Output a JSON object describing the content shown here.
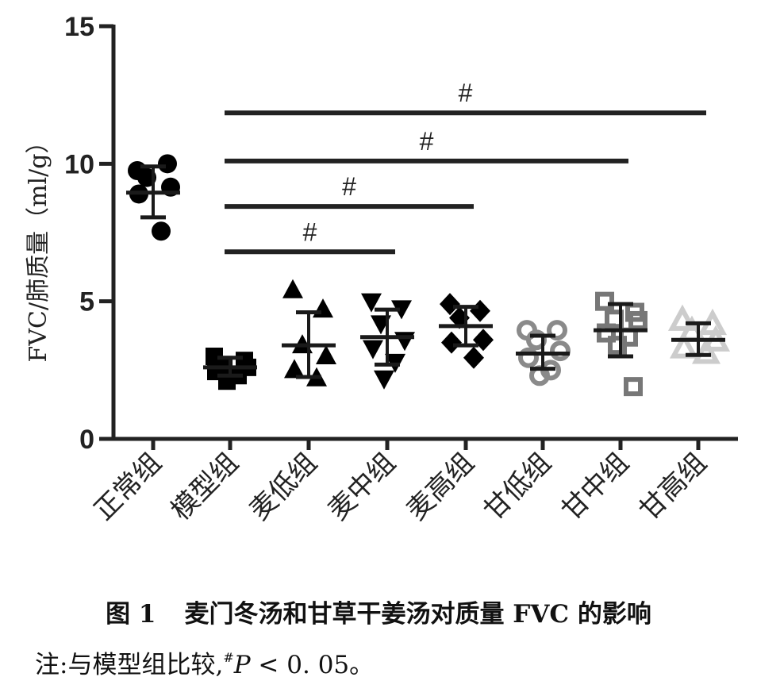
{
  "chart_data": {
    "type": "scatter",
    "ylabel": "FVC/肺质量（ml/g）",
    "ylim": [
      0,
      15
    ],
    "yticks": [
      0,
      5,
      10,
      15
    ],
    "categories": [
      "正常组",
      "模型组",
      "麦低组",
      "麦中组",
      "麦高组",
      "甘低组",
      "甘中组",
      "甘高组"
    ],
    "groups": [
      {
        "name": "正常组",
        "marker": "circle",
        "color": "#000000",
        "filled": true,
        "points": [
          9.75,
          10.0,
          9.5,
          9.15,
          8.9,
          7.55
        ],
        "mean": 8.95,
        "err_low": 8.05,
        "err_high": 9.9
      },
      {
        "name": "模型组",
        "marker": "square",
        "color": "#000000",
        "filled": true,
        "points": [
          3.0,
          2.85,
          2.7,
          2.6,
          2.45,
          2.3,
          2.1
        ],
        "mean": 2.6,
        "err_low": 2.3,
        "err_high": 2.95
      },
      {
        "name": "麦低组",
        "marker": "triangle-up",
        "color": "#000000",
        "filled": true,
        "points": [
          5.4,
          4.7,
          3.4,
          3.0,
          2.5,
          2.2
        ],
        "mean": 3.4,
        "err_low": 2.25,
        "err_high": 4.6
      },
      {
        "name": "麦中组",
        "marker": "triangle-down",
        "color": "#000000",
        "filled": true,
        "points": [
          5.0,
          4.75,
          4.2,
          3.6,
          3.3,
          2.8,
          2.2
        ],
        "mean": 3.7,
        "err_low": 2.7,
        "err_high": 4.7
      },
      {
        "name": "麦高组",
        "marker": "diamond",
        "color": "#000000",
        "filled": true,
        "points": [
          4.9,
          4.65,
          4.4,
          3.6,
          3.5,
          2.95
        ],
        "mean": 4.1,
        "err_low": 3.4,
        "err_high": 4.8
      },
      {
        "name": "甘低组",
        "marker": "circle",
        "color": "#8a8a8a",
        "filled": false,
        "points": [
          3.95,
          3.95,
          3.6,
          3.2,
          2.95,
          2.5,
          2.3
        ],
        "mean": 3.1,
        "err_low": 2.55,
        "err_high": 3.75
      },
      {
        "name": "甘中组",
        "marker": "square",
        "color": "#777777",
        "filled": false,
        "points": [
          5.0,
          4.6,
          4.35,
          4.3,
          3.85,
          3.7,
          3.4,
          1.9
        ],
        "mean": 3.95,
        "err_low": 3.0,
        "err_high": 4.9
      },
      {
        "name": "甘高组",
        "marker": "triangle-up",
        "color": "#cccccc",
        "filled": false,
        "points": [
          4.3,
          4.15,
          3.9,
          3.55,
          3.3,
          3.1
        ],
        "mean": 3.6,
        "err_low": 3.05,
        "err_high": 4.2
      }
    ],
    "significance": [
      {
        "from": "模型组",
        "to": "麦中组",
        "y": 6.8,
        "label": "#"
      },
      {
        "from": "模型组",
        "to": "麦高组",
        "y": 8.45,
        "label": "#"
      },
      {
        "from": "模型组",
        "to": "甘中组",
        "y": 10.1,
        "label": "#"
      },
      {
        "from": "模型组",
        "to": "甘高组",
        "y": 11.85,
        "label": "#"
      }
    ]
  },
  "caption": {
    "fig_label": "图 1",
    "title": "麦门冬汤和甘草干姜汤对质量 FVC 的影响",
    "note_prefix": "注:与模型组比较,",
    "note_mark": "#",
    "note_p": "P",
    "note_rest": " < 0. 05。"
  }
}
